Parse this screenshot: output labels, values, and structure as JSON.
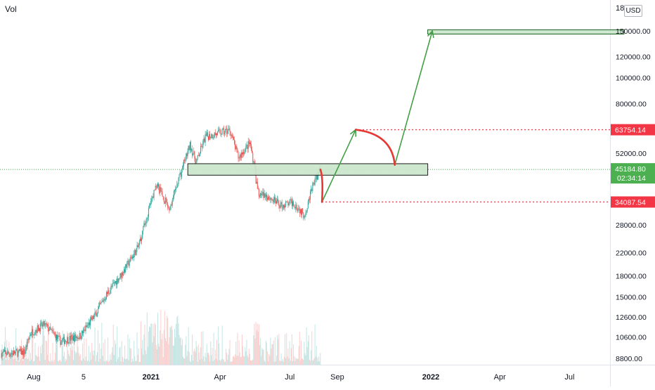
{
  "chart_data": {
    "type": "candlestick",
    "volume_label": "Vol",
    "currency": "USD",
    "price_scale": "log",
    "price_ticks": [
      "150000.00",
      "120000.00",
      "100000.00",
      "80000.00",
      "52000.00",
      "28000.00",
      "22000.00",
      "18000.00",
      "15000.00",
      "12600.00",
      "10600.00",
      "8800.00"
    ],
    "top_tick_partial": "18",
    "time_labels": [
      "Aug",
      "5",
      "2021",
      "Apr",
      "Jul",
      "Sep",
      "2022",
      "Apr",
      "Jul"
    ],
    "current_price": {
      "price": "45184.80",
      "countdown": "02:34:14",
      "value": 45184.8
    },
    "price_labels": [
      {
        "text": "63754.14",
        "value": 63754.14,
        "color": "#f23645"
      },
      {
        "text": "34087.54",
        "value": 34087.54,
        "color": "#f23645"
      }
    ],
    "price_series": [
      {
        "date": "2020-07-01",
        "close": 9200
      },
      {
        "date": "2020-07-20",
        "close": 9300
      },
      {
        "date": "2020-07-28",
        "close": 11000
      },
      {
        "date": "2020-08-15",
        "close": 11800
      },
      {
        "date": "2020-09-05",
        "close": 10200
      },
      {
        "date": "2020-10-01",
        "close": 10700
      },
      {
        "date": "2020-10-20",
        "close": 12800
      },
      {
        "date": "2020-11-05",
        "close": 15500
      },
      {
        "date": "2020-11-25",
        "close": 18500
      },
      {
        "date": "2020-12-15",
        "close": 23000
      },
      {
        "date": "2021-01-08",
        "close": 40000
      },
      {
        "date": "2021-01-25",
        "close": 32000
      },
      {
        "date": "2021-02-10",
        "close": 45000
      },
      {
        "date": "2021-02-21",
        "close": 56000
      },
      {
        "date": "2021-03-01",
        "close": 48000
      },
      {
        "date": "2021-03-13",
        "close": 60000
      },
      {
        "date": "2021-04-14",
        "close": 63500
      },
      {
        "date": "2021-04-25",
        "close": 50000
      },
      {
        "date": "2021-05-10",
        "close": 57000
      },
      {
        "date": "2021-05-15",
        "close": 48000
      },
      {
        "date": "2021-05-20",
        "close": 37000
      },
      {
        "date": "2021-06-01",
        "close": 36000
      },
      {
        "date": "2021-06-20",
        "close": 33000
      },
      {
        "date": "2021-07-05",
        "close": 34000
      },
      {
        "date": "2021-07-20",
        "close": 30500
      },
      {
        "date": "2021-08-01",
        "close": 40000
      },
      {
        "date": "2021-08-10",
        "close": 45200
      }
    ],
    "zones": [
      {
        "from_date": "2021-02-18",
        "to_date": "2021-12-28",
        "low": 43000,
        "high": 47500,
        "fill": "#c8e6c9",
        "border": "#1b1b1b"
      },
      {
        "from_date": "2021-12-28",
        "to_date": "2022-09-10",
        "low": 146000,
        "high": 151500,
        "fill": "#c8e6c9",
        "border": "#1b5e20"
      }
    ],
    "projection_path": [
      {
        "date": "2021-08-12",
        "price": 34087.54
      },
      {
        "date": "2021-09-25",
        "price": 63754.14
      },
      {
        "date": "2021-11-15",
        "price": 47000
      },
      {
        "date": "2022-01-03",
        "price": 150000
      }
    ],
    "colors": {
      "up": "#26a69a",
      "down": "#ef5350",
      "projection": "#43a047",
      "arc": "#e53935",
      "guide": "#f23645",
      "current": "#4caf50"
    }
  }
}
